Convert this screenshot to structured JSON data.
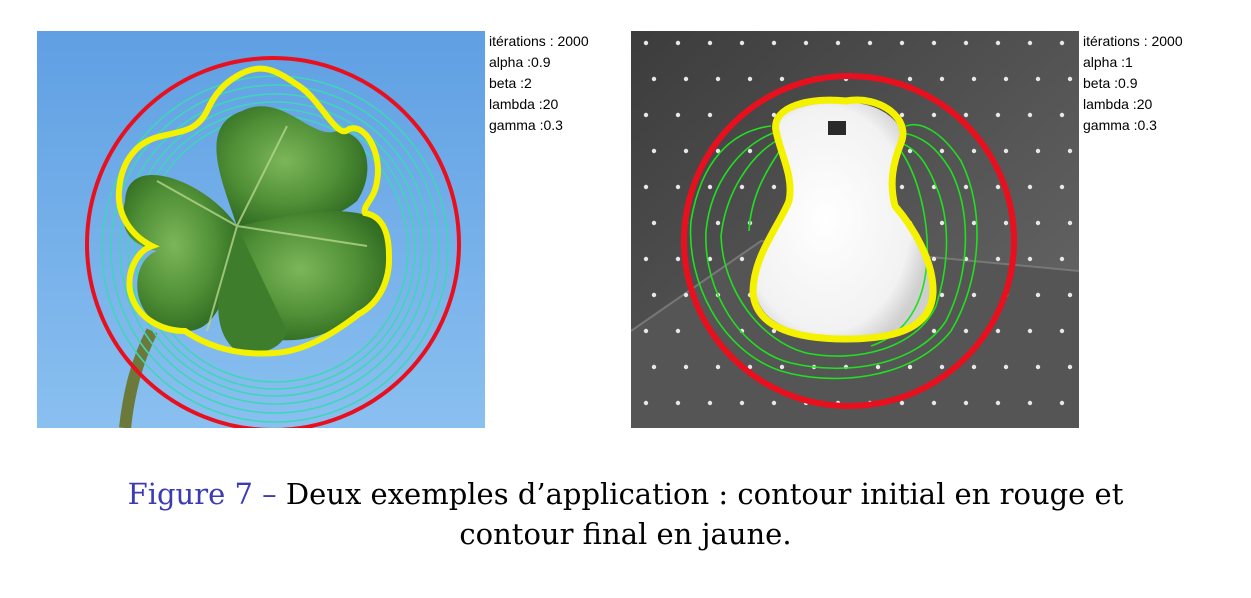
{
  "figure": {
    "label": "Figure 7 –",
    "caption_line1": "Deux exemples d’application : contour initial en rouge et",
    "caption_line2": "contour final en jaune."
  },
  "examples": [
    {
      "subject": "four-leaf clover on blue sky",
      "params": [
        {
          "name": "itérations :",
          "value": "2000"
        },
        {
          "name": "alpha :",
          "value": "0.9"
        },
        {
          "name": "beta :",
          "value": "2"
        },
        {
          "name": "lambda :",
          "value": "20"
        },
        {
          "name": "gamma :",
          "value": "0.3"
        }
      ]
    },
    {
      "subject": "white vase in grey dotted room",
      "params": [
        {
          "name": "itérations :",
          "value": "2000"
        },
        {
          "name": "alpha :",
          "value": "1"
        },
        {
          "name": "beta :",
          "value": "0.9"
        },
        {
          "name": "lambda :",
          "value": "20"
        },
        {
          "name": "gamma :",
          "value": "0.3"
        }
      ]
    }
  ],
  "colors": {
    "initial_contour": "#e8101e",
    "final_contour": "#f5f200",
    "intermediate_left": "#3fd6b8",
    "intermediate_right": "#20e020",
    "sky": "#6fa9e6",
    "caption_label": "#3b3bb3"
  }
}
